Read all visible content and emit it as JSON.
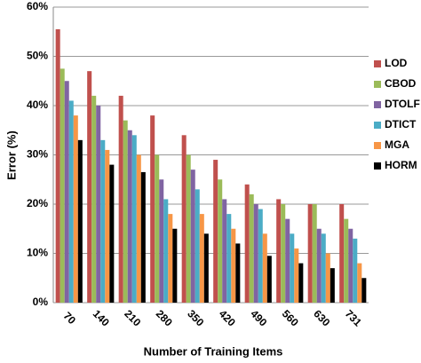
{
  "chart_data": {
    "type": "bar",
    "x_label": "Number of Training Items",
    "y_label": "Error (%)",
    "categories": [
      "70",
      "140",
      "210",
      "280",
      "350",
      "420",
      "490",
      "560",
      "630",
      "731"
    ],
    "series": [
      {
        "name": "LOD",
        "color": "#c0504d",
        "values": [
          55.5,
          47,
          42,
          38,
          34,
          29,
          24,
          21,
          20,
          20
        ]
      },
      {
        "name": "CBOD",
        "color": "#9bbb59",
        "values": [
          47.5,
          42,
          37,
          30,
          30,
          25,
          22,
          20,
          20,
          17
        ]
      },
      {
        "name": "DTOLF",
        "color": "#8064a2",
        "values": [
          45,
          40,
          35,
          25,
          27,
          21,
          20,
          17,
          15,
          15
        ]
      },
      {
        "name": "DTICT",
        "color": "#4bacc6",
        "values": [
          41,
          33,
          34,
          21,
          23,
          18,
          19,
          14,
          14,
          13
        ]
      },
      {
        "name": "MGA",
        "color": "#f79646",
        "values": [
          38,
          31,
          30,
          18,
          18,
          15,
          14,
          11,
          10,
          8
        ]
      },
      {
        "name": "HORM",
        "color": "#000000",
        "values": [
          33,
          28,
          26.5,
          15,
          14,
          12,
          9.5,
          8,
          7,
          5
        ]
      }
    ],
    "ylim": [
      0,
      60
    ],
    "yticks": [
      {
        "value": 0,
        "label": "0%"
      },
      {
        "value": 10,
        "label": "10%"
      },
      {
        "value": 20,
        "label": "20%"
      },
      {
        "value": 30,
        "label": "30%"
      },
      {
        "value": 40,
        "label": "40%"
      },
      {
        "value": 50,
        "label": "50%"
      },
      {
        "value": 60,
        "label": "60%"
      }
    ],
    "grid": true,
    "legend": "right"
  }
}
